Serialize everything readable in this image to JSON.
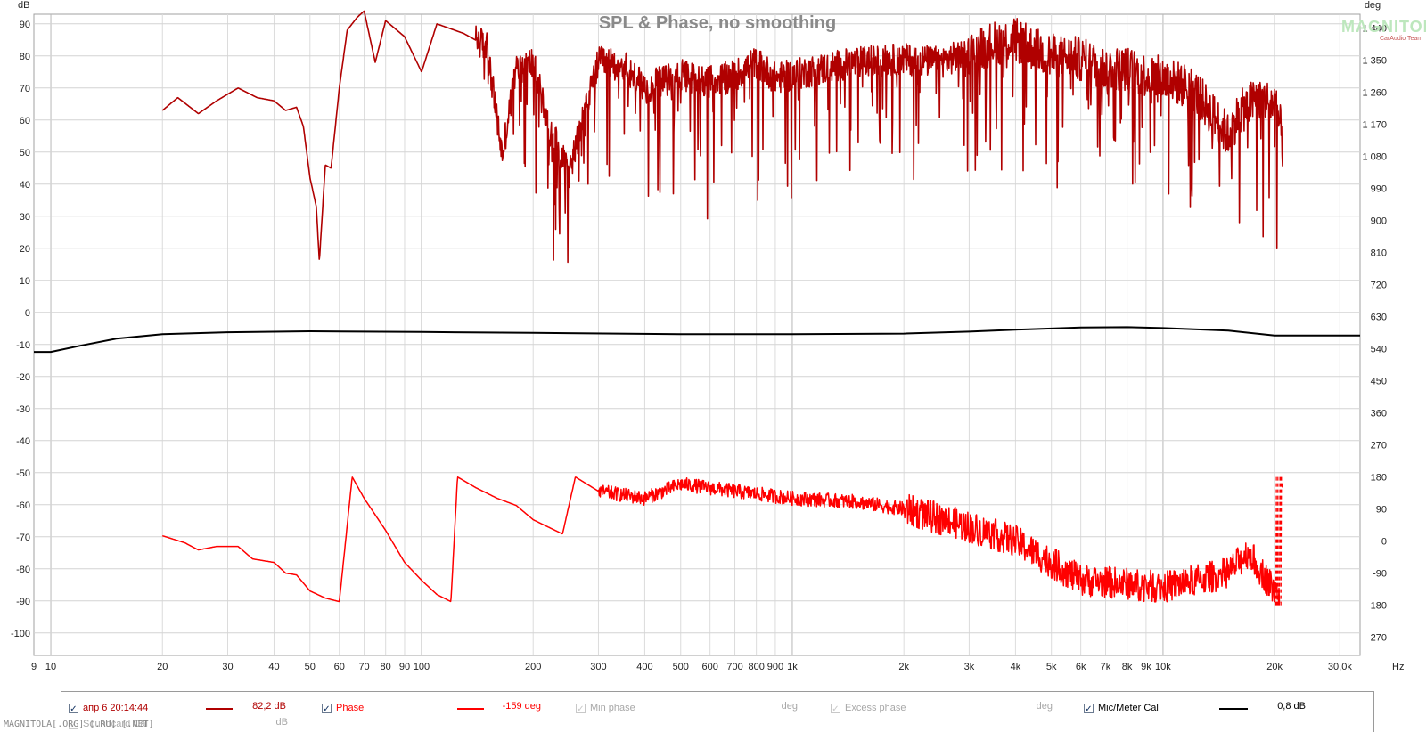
{
  "chart_data": {
    "type": "line",
    "title": "SPL & Phase, no smoothing",
    "x_axis": {
      "scale": "log",
      "range": [
        9,
        34000
      ],
      "unit": "Hz",
      "ticks": [
        9,
        10,
        20,
        30,
        40,
        50,
        60,
        70,
        80,
        90,
        100,
        200,
        300,
        400,
        500,
        600,
        700,
        800,
        900,
        1000,
        2000,
        3000,
        4000,
        5000,
        6000,
        7000,
        8000,
        9000,
        10000,
        20000,
        30000
      ],
      "tick_labels": [
        "9",
        "10",
        "20",
        "30",
        "40",
        "50",
        "60",
        "70",
        "80",
        "90",
        "100",
        "200",
        "300",
        "400",
        "500",
        "600",
        "700",
        "800",
        "900",
        "1k",
        "2k",
        "3k",
        "4k",
        "5k",
        "6k",
        "7k",
        "8k",
        "9k",
        "10k",
        "20k",
        "30,0k"
      ]
    },
    "y_left": {
      "unit": "dB",
      "range": [
        -107,
        93
      ],
      "ticks": [
        90,
        80,
        70,
        60,
        50,
        40,
        30,
        20,
        10,
        0,
        -10,
        -20,
        -30,
        -40,
        -50,
        -60,
        -70,
        -80,
        -90,
        -100
      ]
    },
    "y_right": {
      "unit": "deg",
      "range": [
        -321,
        1479
      ],
      "ticks": [
        1440,
        1350,
        1260,
        1170,
        1080,
        990,
        900,
        810,
        720,
        630,
        540,
        450,
        360,
        270,
        180,
        90,
        0,
        -90,
        -180,
        -270
      ],
      "tick_labels": [
        "1 440",
        "1 350",
        "1 260",
        "1 170",
        "1 080",
        "990",
        "900",
        "810",
        "720",
        "630",
        "540",
        "450",
        "360",
        "270",
        "180",
        "90",
        "0",
        "-90",
        "-180",
        "-270"
      ]
    },
    "grid": true,
    "series": [
      {
        "name": "апр 6 20:14:44",
        "axis": "left",
        "color": "#b00000",
        "note_points": [
          [
            20,
            63
          ],
          [
            22,
            67
          ],
          [
            25,
            62
          ],
          [
            28,
            66
          ],
          [
            32,
            70
          ],
          [
            36,
            67
          ],
          [
            40,
            66
          ],
          [
            43,
            63
          ],
          [
            46,
            64
          ],
          [
            48,
            58
          ],
          [
            50,
            42
          ],
          [
            52,
            33
          ],
          [
            53,
            16
          ],
          [
            55,
            46
          ],
          [
            57,
            45
          ],
          [
            60,
            70
          ],
          [
            63,
            88
          ],
          [
            67,
            92
          ],
          [
            70,
            94
          ],
          [
            75,
            78
          ],
          [
            80,
            91
          ],
          [
            90,
            86
          ],
          [
            100,
            75
          ],
          [
            110,
            90
          ],
          [
            130,
            87
          ],
          [
            150,
            83
          ],
          [
            165,
            49
          ],
          [
            180,
            76
          ],
          [
            200,
            78
          ],
          [
            220,
            58
          ],
          [
            250,
            44
          ],
          [
            300,
            78
          ],
          [
            350,
            77
          ],
          [
            400,
            70
          ],
          [
            500,
            74
          ],
          [
            600,
            72
          ],
          [
            700,
            74
          ],
          [
            800,
            78
          ],
          [
            900,
            73
          ],
          [
            1000,
            74
          ],
          [
            1200,
            76
          ],
          [
            1500,
            78
          ],
          [
            2000,
            79
          ],
          [
            2500,
            78
          ],
          [
            3000,
            81
          ],
          [
            3500,
            84
          ],
          [
            4000,
            85
          ],
          [
            4500,
            82
          ],
          [
            5000,
            80
          ],
          [
            6000,
            79
          ],
          [
            7000,
            76
          ],
          [
            8000,
            76
          ],
          [
            9000,
            74
          ],
          [
            10000,
            73
          ],
          [
            12000,
            70
          ],
          [
            14000,
            60
          ],
          [
            15000,
            55
          ],
          [
            16000,
            62
          ],
          [
            18000,
            67
          ],
          [
            20000,
            65
          ],
          [
            21000,
            55
          ]
        ]
      },
      {
        "name": "Phase",
        "axis": "right",
        "color": "#ff0000",
        "wrapped": [
          -180,
          180
        ],
        "note_points": [
          [
            20,
            15
          ],
          [
            23,
            -5
          ],
          [
            25,
            -25
          ],
          [
            28,
            -15
          ],
          [
            32,
            -15
          ],
          [
            35,
            -50
          ],
          [
            40,
            -60
          ],
          [
            43,
            -90
          ],
          [
            46,
            -95
          ],
          [
            50,
            -140
          ],
          [
            55,
            -160
          ],
          [
            60,
            -170
          ],
          [
            65,
            180
          ],
          [
            70,
            120
          ],
          [
            80,
            30
          ],
          [
            90,
            -60
          ],
          [
            100,
            -110
          ],
          [
            110,
            -150
          ],
          [
            120,
            -170
          ],
          [
            125,
            180
          ],
          [
            140,
            150
          ],
          [
            160,
            120
          ],
          [
            180,
            100
          ],
          [
            200,
            60
          ],
          [
            240,
            20
          ],
          [
            260,
            180
          ],
          [
            300,
            140
          ],
          [
            400,
            120
          ],
          [
            500,
            160
          ],
          [
            700,
            140
          ],
          [
            1000,
            120
          ],
          [
            1500,
            110
          ],
          [
            2000,
            90
          ],
          [
            3000,
            40
          ],
          [
            4000,
            0
          ],
          [
            5000,
            -60
          ],
          [
            6000,
            -110
          ],
          [
            8000,
            -120
          ],
          [
            10000,
            -130
          ],
          [
            15000,
            -90
          ],
          [
            17000,
            -30
          ],
          [
            18000,
            -70
          ],
          [
            20000,
            -140
          ],
          [
            21000,
            -170
          ]
        ]
      },
      {
        "name": "Mic/Meter Cal",
        "axis": "left",
        "color": "#000000",
        "points": [
          [
            9,
            -12.3
          ],
          [
            10,
            -12.3
          ],
          [
            12,
            -10.4
          ],
          [
            15,
            -8.2
          ],
          [
            20,
            -6.8
          ],
          [
            30,
            -6.2
          ],
          [
            50,
            -5.9
          ],
          [
            100,
            -6.1
          ],
          [
            200,
            -6.4
          ],
          [
            500,
            -6.8
          ],
          [
            1000,
            -6.8
          ],
          [
            2000,
            -6.6
          ],
          [
            3000,
            -6.0
          ],
          [
            4000,
            -5.4
          ],
          [
            6000,
            -4.7
          ],
          [
            8000,
            -4.6
          ],
          [
            10000,
            -4.9
          ],
          [
            15000,
            -5.7
          ],
          [
            20000,
            -7.2
          ],
          [
            34000,
            -7.2
          ]
        ]
      }
    ]
  },
  "legend": {
    "items": [
      {
        "label": "апр 6 20:14:44",
        "checked": true,
        "value": "82,2 dB",
        "color": "#b00000",
        "enabled": true
      },
      {
        "label": "Phase",
        "checked": true,
        "value": "-159 deg",
        "color": "#ff0000",
        "enabled": true
      },
      {
        "label": "Min phase",
        "checked": true,
        "value": "deg",
        "color": "",
        "enabled": false
      },
      {
        "label": "Excess phase",
        "checked": true,
        "value": "deg",
        "color": "",
        "enabled": false
      },
      {
        "label": "Mic/Meter Cal",
        "checked": true,
        "value": "0,8 dB",
        "color": "#000000",
        "enabled": true
      },
      {
        "label": "Soundcard Cal",
        "checked": true,
        "value": "dB",
        "color": "",
        "enabled": false
      }
    ]
  },
  "watermark": {
    "text": "MAGNITOLA",
    "subtext": "CarAudio Team"
  },
  "footer_text": "MAGNITOLA[.ORG] [.RU] [.NET]",
  "check_mark": "✓"
}
